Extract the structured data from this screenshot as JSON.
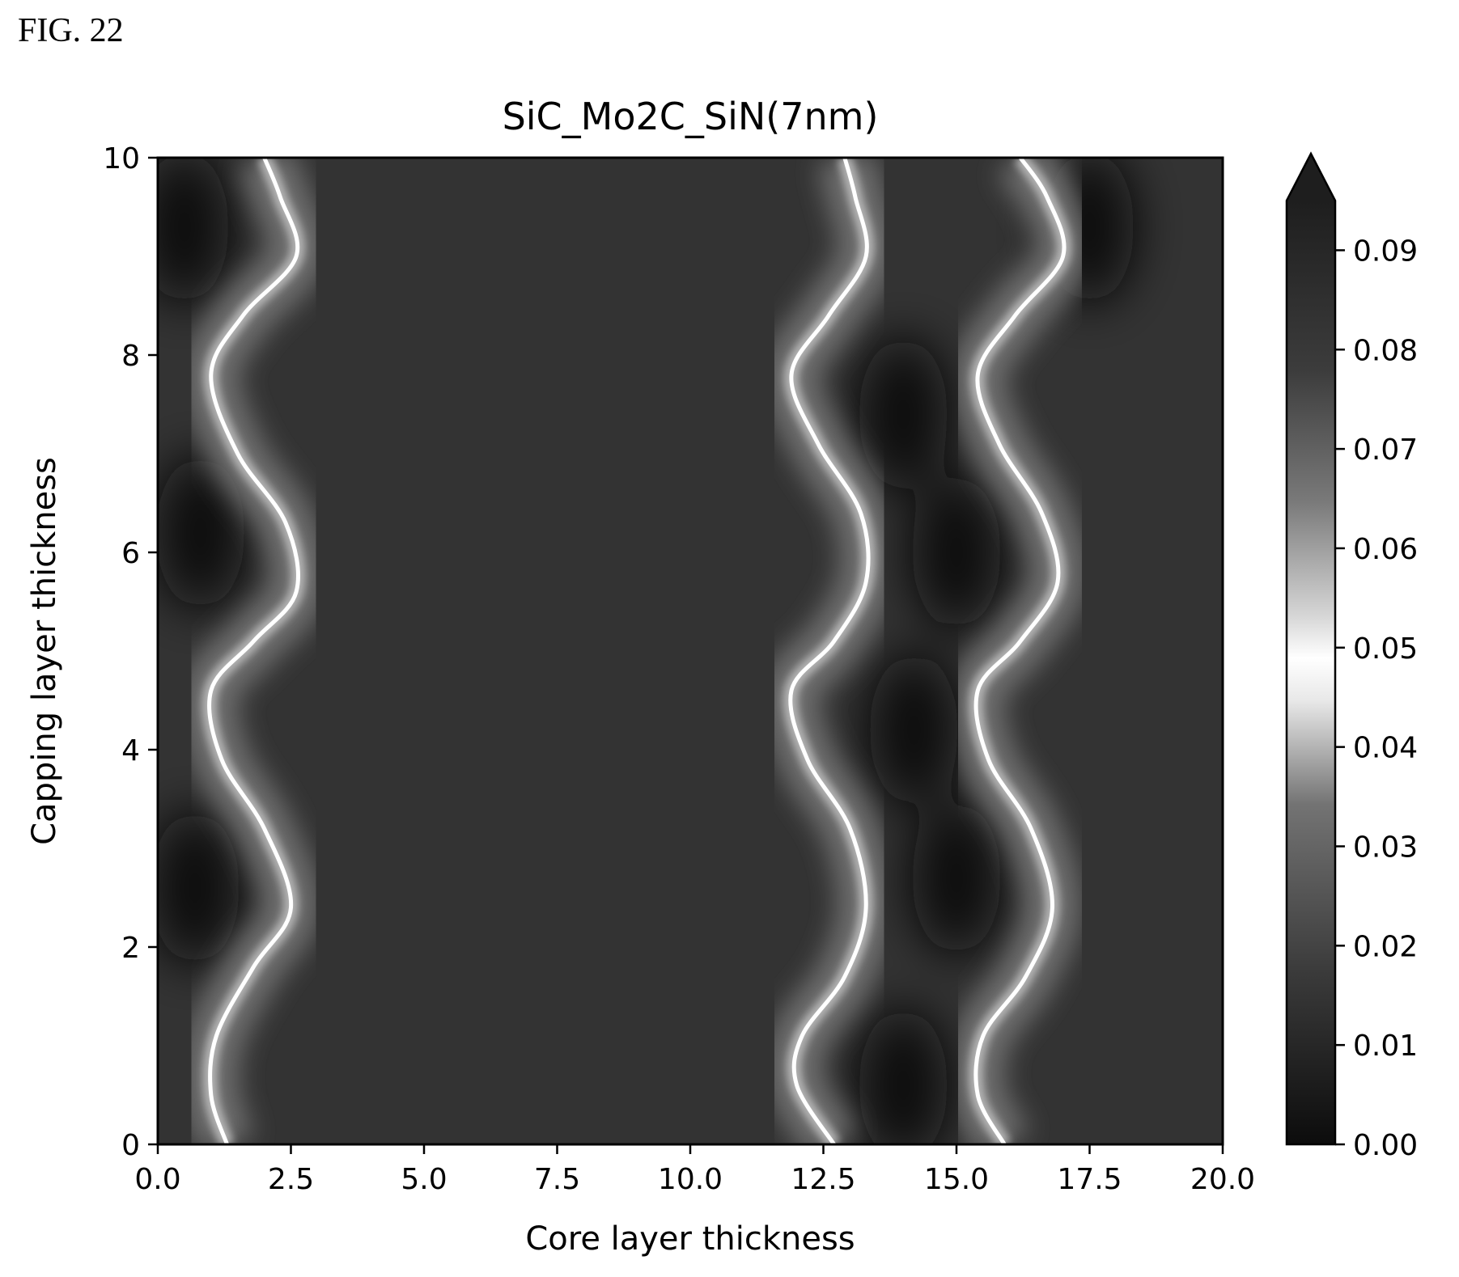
{
  "figure_label": "FIG. 22",
  "chart_data": {
    "type": "heatmap",
    "title": "SiC_Mo2C_SiN(7nm)",
    "xlabel": "Core layer thickness",
    "ylabel": "Capping layer thickness",
    "xlim": [
      0,
      20
    ],
    "ylim": [
      0,
      10
    ],
    "x_ticks": [
      "0.0",
      "2.5",
      "5.0",
      "7.5",
      "10.0",
      "12.5",
      "15.0",
      "17.5",
      "20.0"
    ],
    "y_ticks": [
      "0",
      "2",
      "4",
      "6",
      "8",
      "10"
    ],
    "colorbar": {
      "range": [
        0.0,
        0.095
      ],
      "extend": "max",
      "ticks": [
        "0.00",
        "0.01",
        "0.02",
        "0.03",
        "0.04",
        "0.05",
        "0.06",
        "0.07",
        "0.08",
        "0.09"
      ],
      "colormap": "grayscale, bright at 0.05",
      "colors": {
        "low": "#0c0c0c",
        "mid": "#ffffff",
        "high": "#1e1e1e"
      }
    },
    "bright_ridges": [
      {
        "name": "",
        "points": [
          [
            1.3,
            0.0
          ],
          [
            1.0,
            0.5
          ],
          [
            1.1,
            1.1
          ],
          [
            1.8,
            1.8
          ],
          [
            2.5,
            2.4
          ],
          [
            2.0,
            3.2
          ],
          [
            1.2,
            3.9
          ],
          [
            1.0,
            4.6
          ],
          [
            1.8,
            5.1
          ],
          [
            2.6,
            5.6
          ],
          [
            2.4,
            6.3
          ],
          [
            1.5,
            7.0
          ],
          [
            1.0,
            7.8
          ],
          [
            1.6,
            8.4
          ],
          [
            2.6,
            9.0
          ],
          [
            2.3,
            9.6
          ],
          [
            2.0,
            10.0
          ]
        ]
      },
      {
        "name": "",
        "points": [
          [
            12.7,
            0.0
          ],
          [
            12.0,
            0.6
          ],
          [
            12.1,
            1.1
          ],
          [
            12.9,
            1.7
          ],
          [
            13.3,
            2.4
          ],
          [
            13.0,
            3.2
          ],
          [
            12.2,
            3.9
          ],
          [
            11.9,
            4.6
          ],
          [
            12.7,
            5.1
          ],
          [
            13.3,
            5.7
          ],
          [
            13.2,
            6.4
          ],
          [
            12.4,
            7.1
          ],
          [
            11.9,
            7.8
          ],
          [
            12.6,
            8.4
          ],
          [
            13.3,
            9.0
          ],
          [
            13.1,
            9.6
          ],
          [
            12.9,
            10.0
          ]
        ]
      },
      {
        "name": "",
        "points": [
          [
            15.9,
            0.0
          ],
          [
            15.4,
            0.5
          ],
          [
            15.5,
            1.1
          ],
          [
            16.3,
            1.7
          ],
          [
            16.8,
            2.4
          ],
          [
            16.4,
            3.2
          ],
          [
            15.6,
            3.9
          ],
          [
            15.4,
            4.6
          ],
          [
            16.2,
            5.1
          ],
          [
            16.9,
            5.7
          ],
          [
            16.6,
            6.4
          ],
          [
            15.8,
            7.1
          ],
          [
            15.4,
            7.8
          ],
          [
            16.1,
            8.4
          ],
          [
            17.0,
            9.0
          ],
          [
            16.7,
            9.6
          ],
          [
            16.2,
            10.0
          ]
        ]
      }
    ],
    "dark_regions": [
      {
        "x": 0.5,
        "y": 9.3
      },
      {
        "x": 0.8,
        "y": 6.2
      },
      {
        "x": 0.7,
        "y": 2.6
      },
      {
        "x": 14.0,
        "y": 7.4
      },
      {
        "x": 14.2,
        "y": 4.2
      },
      {
        "x": 14.0,
        "y": 0.6
      },
      {
        "x": 15.0,
        "y": 6.0
      },
      {
        "x": 15.0,
        "y": 2.7
      },
      {
        "x": 17.5,
        "y": 9.3
      }
    ]
  }
}
